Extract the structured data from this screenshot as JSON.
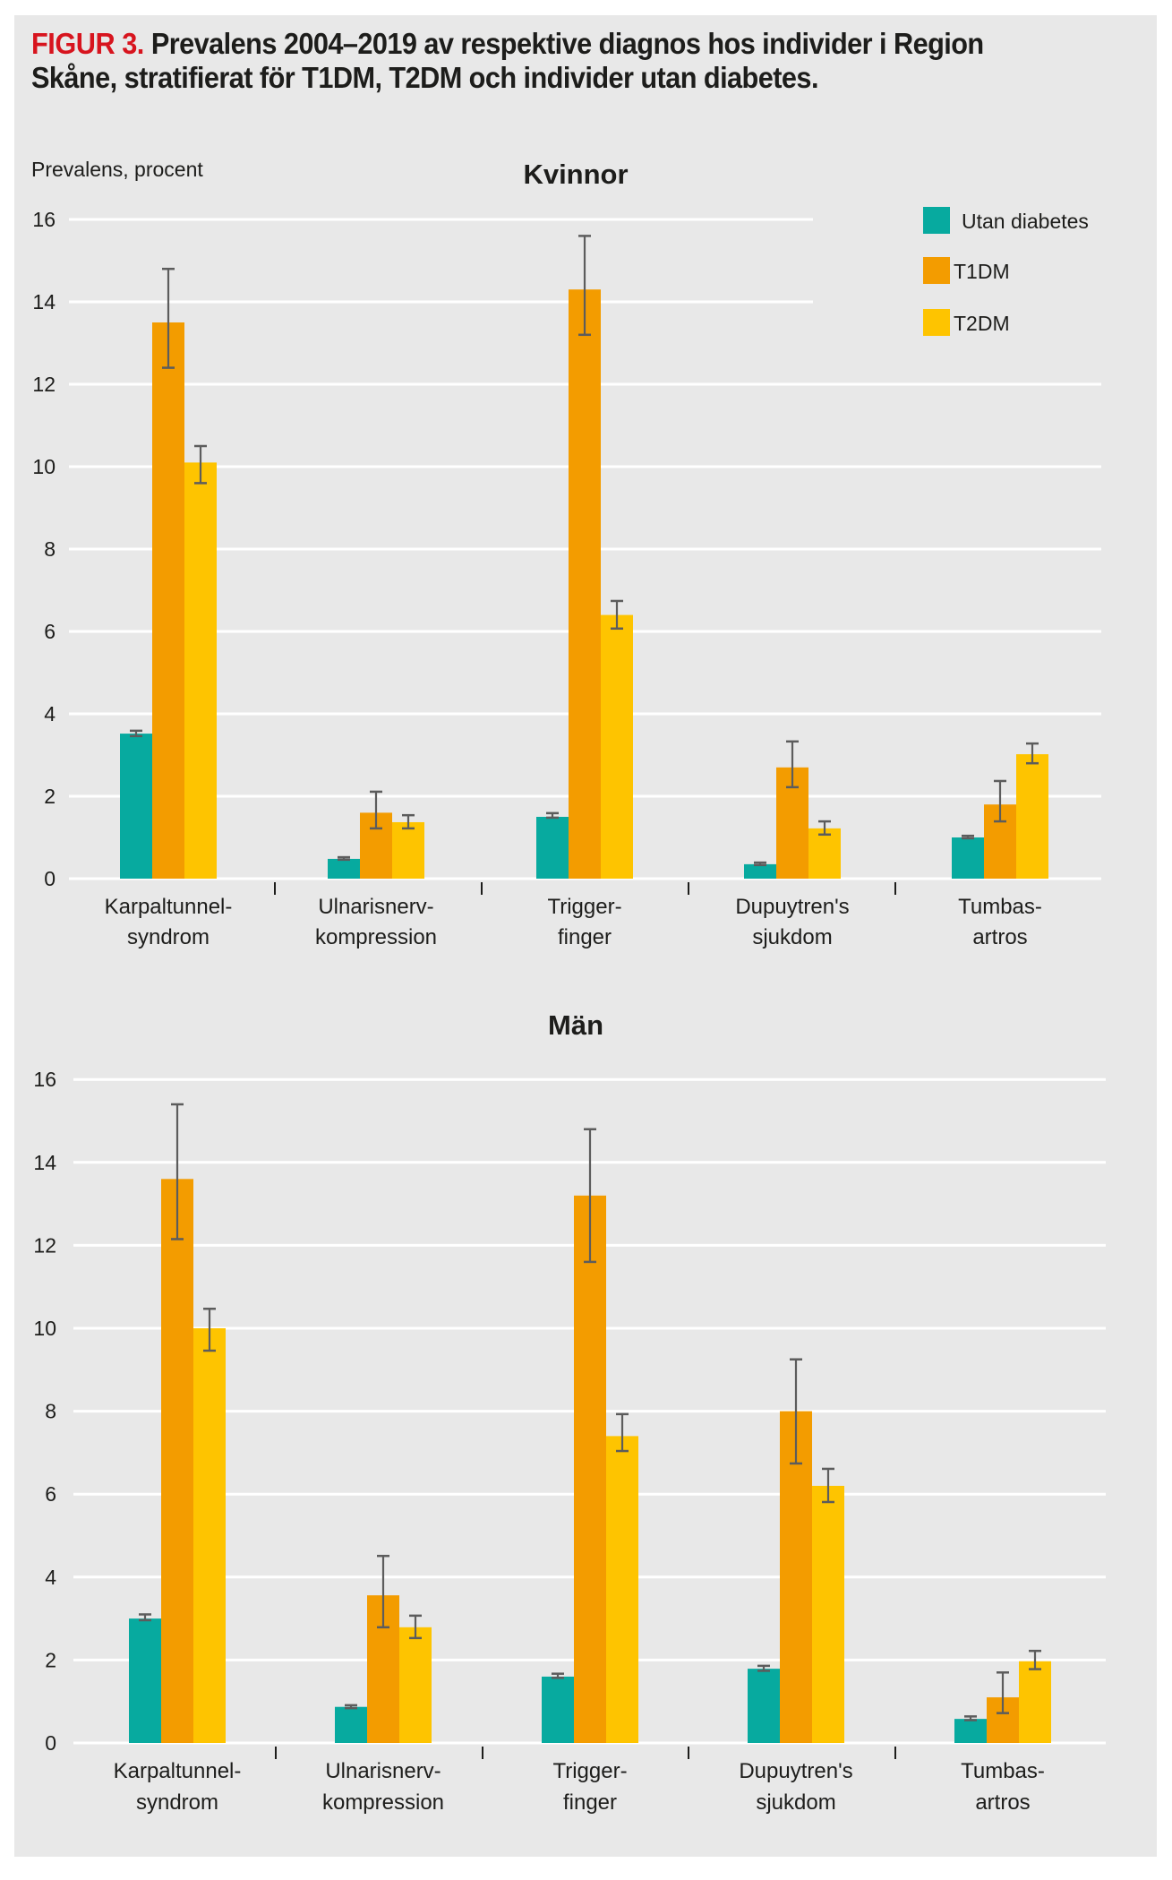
{
  "figure": {
    "label": "FIGUR 3.",
    "title_line1": " Prevalens 2004–2019 av respektive diagnos hos individer i Region",
    "title_line2": "Skåne, stratifierat för T1DM, T2DM och individer utan diabetes."
  },
  "colors": {
    "utan_diabetes": "#07aa9f",
    "t1dm": "#f39c00",
    "t2dm": "#fec400",
    "error_bar": "#5c5c5c",
    "gridline": "#ffffff",
    "panel": "#e8e8e8",
    "figure_label": "#d7141e"
  },
  "legend": {
    "items": [
      {
        "label": "Utan diabetes",
        "color_key": "utan_diabetes"
      },
      {
        "label": "T1DM",
        "color_key": "t1dm"
      },
      {
        "label": "T2DM",
        "color_key": "t2dm"
      }
    ]
  },
  "chart_data": [
    {
      "type": "bar",
      "title": "Kvinnor",
      "ylabel": "Prevalens, procent",
      "xlabel": "",
      "ylim": [
        0,
        16
      ],
      "yticks": [
        0,
        2,
        4,
        6,
        8,
        10,
        12,
        14,
        16
      ],
      "grid": true,
      "legend_position": "top-right",
      "categories": [
        [
          "Karpaltunnel-",
          "syndrom"
        ],
        [
          "Ulnarisnerv-",
          "kompression"
        ],
        [
          "Trigger-",
          "finger"
        ],
        [
          "Dupuytren's",
          "sjukdom"
        ],
        [
          "Tumbas-",
          "artros"
        ]
      ],
      "series": [
        {
          "name": "Utan diabetes",
          "color_key": "utan_diabetes",
          "values": [
            3.52,
            0.48,
            1.5,
            0.35,
            1.0
          ],
          "err_low": [
            3.46,
            0.46,
            1.48,
            0.33,
            0.98
          ],
          "err_high": [
            3.59,
            0.52,
            1.59,
            0.39,
            1.04
          ]
        },
        {
          "name": "T1DM",
          "color_key": "t1dm",
          "values": [
            13.5,
            1.6,
            14.3,
            2.7,
            1.8
          ],
          "err_low": [
            12.4,
            1.22,
            13.2,
            2.22,
            1.39
          ],
          "err_high": [
            14.8,
            2.11,
            15.6,
            3.33,
            2.37
          ]
        },
        {
          "name": "T2DM",
          "color_key": "t2dm",
          "values": [
            10.1,
            1.37,
            6.4,
            1.22,
            3.02
          ],
          "err_low": [
            9.6,
            1.22,
            6.07,
            1.07,
            2.8
          ],
          "err_high": [
            10.5,
            1.54,
            6.74,
            1.39,
            3.28
          ]
        }
      ]
    },
    {
      "type": "bar",
      "title": "Män",
      "ylabel": "",
      "xlabel": "",
      "ylim": [
        0,
        16
      ],
      "yticks": [
        0,
        2,
        4,
        6,
        8,
        10,
        12,
        14,
        16
      ],
      "grid": true,
      "categories": [
        [
          "Karpaltunnel-",
          "syndrom"
        ],
        [
          "Ulnarisnerv-",
          "kompression"
        ],
        [
          "Trigger-",
          "finger"
        ],
        [
          "Dupuytren's",
          "sjukdom"
        ],
        [
          "Tumbas-",
          "artros"
        ]
      ],
      "series": [
        {
          "name": "Utan diabetes",
          "color_key": "utan_diabetes",
          "values": [
            3.0,
            0.87,
            1.6,
            1.79,
            0.58
          ],
          "err_low": [
            2.96,
            0.84,
            1.57,
            1.74,
            0.55
          ],
          "err_high": [
            3.1,
            0.91,
            1.67,
            1.86,
            0.64
          ]
        },
        {
          "name": "T1DM",
          "color_key": "t1dm",
          "values": [
            13.6,
            3.56,
            13.2,
            8.0,
            1.1
          ],
          "err_low": [
            12.15,
            2.79,
            11.6,
            6.74,
            0.72
          ],
          "err_high": [
            15.4,
            4.51,
            14.8,
            9.25,
            1.7
          ]
        },
        {
          "name": "T2DM",
          "color_key": "t2dm",
          "values": [
            10.0,
            2.79,
            7.4,
            6.2,
            1.97
          ],
          "err_low": [
            9.46,
            2.53,
            7.04,
            5.81,
            1.78
          ],
          "err_high": [
            10.47,
            3.07,
            7.93,
            6.61,
            2.22
          ]
        }
      ]
    }
  ]
}
